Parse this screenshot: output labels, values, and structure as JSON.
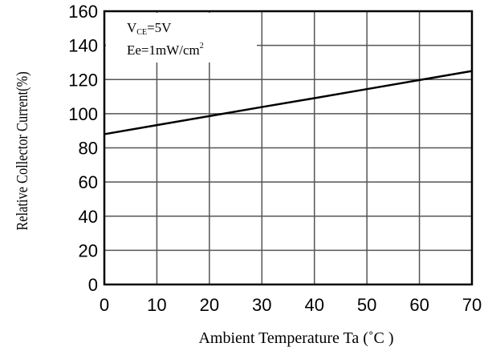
{
  "chart_data": {
    "type": "line",
    "xlabel": "Ambient Temperature Ta (˚C )",
    "ylabel": "Relative Collector Current(%)",
    "xlim": [
      0,
      70
    ],
    "ylim": [
      0,
      160
    ],
    "x_ticks": [
      "0",
      "10",
      "20",
      "30",
      "40",
      "50",
      "60",
      "70"
    ],
    "y_ticks": [
      "0",
      "20",
      "40",
      "60",
      "80",
      "100",
      "120",
      "140",
      "160"
    ],
    "grid": true,
    "annotations": {
      "vce_main": "V",
      "vce_sub": "CE",
      "vce_value": "=5V",
      "ee_main": "Ee=1mW/cm",
      "ee_sup": "2"
    },
    "series": [
      {
        "x": [
          0,
          10,
          20,
          30,
          40,
          50,
          60,
          70
        ],
        "y": [
          88,
          93.3,
          98.6,
          103.9,
          109.1,
          114.4,
          119.7,
          125
        ]
      }
    ]
  }
}
